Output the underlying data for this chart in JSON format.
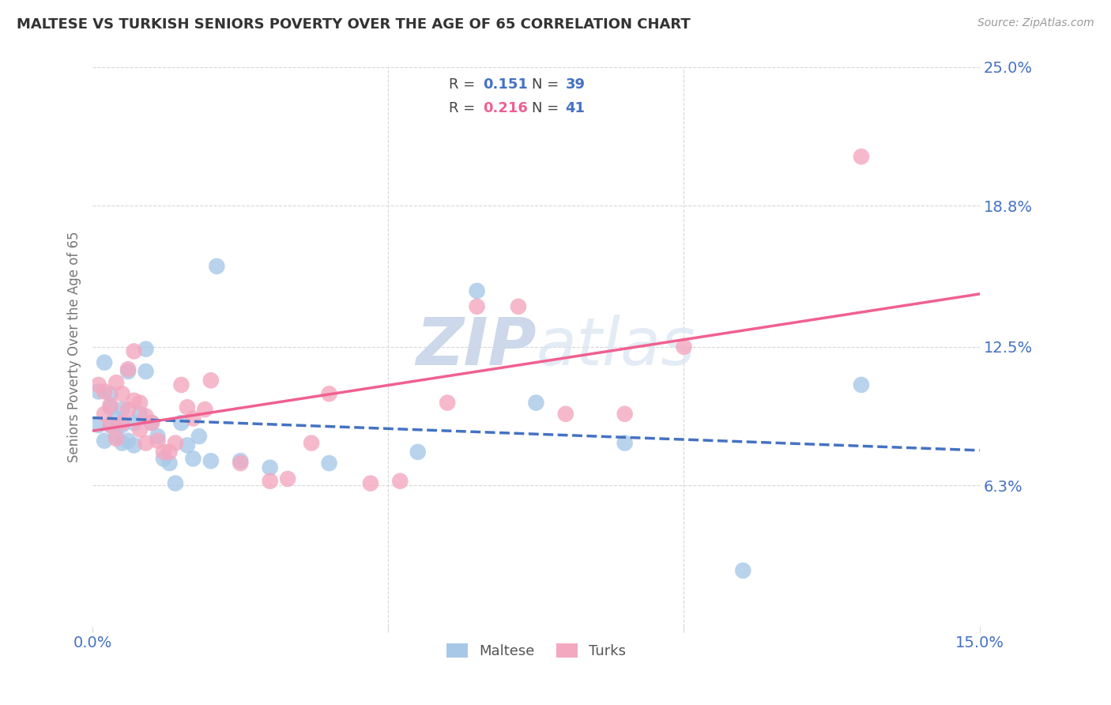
{
  "title": "MALTESE VS TURKISH SENIORS POVERTY OVER THE AGE OF 65 CORRELATION CHART",
  "source": "Source: ZipAtlas.com",
  "ylabel": "Seniors Poverty Over the Age of 65",
  "xlim": [
    0.0,
    0.15
  ],
  "ylim": [
    0.0,
    0.25
  ],
  "xtick_positions": [
    0.0,
    0.05,
    0.1,
    0.15
  ],
  "xtick_labels": [
    "0.0%",
    "",
    "",
    "15.0%"
  ],
  "ytick_positions": [
    0.063,
    0.125,
    0.188,
    0.25
  ],
  "ytick_labels": [
    "6.3%",
    "12.5%",
    "18.8%",
    "25.0%"
  ],
  "legend_r_maltese": "0.151",
  "legend_n_maltese": "39",
  "legend_r_turks": "0.216",
  "legend_n_turks": "41",
  "maltese_color": "#a8c8e8",
  "turks_color": "#f4a8c0",
  "maltese_line_color": "#4472c4",
  "turks_line_color": "#f06090",
  "n_color": "#4472c4",
  "background_color": "#ffffff",
  "grid_color": "#d8d8d8",
  "maltese_x": [
    0.001,
    0.001,
    0.002,
    0.002,
    0.003,
    0.003,
    0.003,
    0.004,
    0.004,
    0.005,
    0.005,
    0.005,
    0.006,
    0.006,
    0.007,
    0.007,
    0.008,
    0.009,
    0.009,
    0.01,
    0.011,
    0.012,
    0.013,
    0.014,
    0.015,
    0.016,
    0.017,
    0.018,
    0.02,
    0.021,
    0.025,
    0.03,
    0.04,
    0.055,
    0.065,
    0.075,
    0.09,
    0.11,
    0.13
  ],
  "maltese_y": [
    0.105,
    0.09,
    0.118,
    0.083,
    0.104,
    0.098,
    0.09,
    0.093,
    0.085,
    0.097,
    0.09,
    0.082,
    0.114,
    0.083,
    0.091,
    0.081,
    0.095,
    0.124,
    0.114,
    0.091,
    0.085,
    0.075,
    0.073,
    0.064,
    0.091,
    0.081,
    0.075,
    0.085,
    0.074,
    0.161,
    0.074,
    0.071,
    0.073,
    0.078,
    0.15,
    0.1,
    0.082,
    0.025,
    0.108
  ],
  "turks_x": [
    0.001,
    0.002,
    0.002,
    0.003,
    0.003,
    0.004,
    0.004,
    0.005,
    0.005,
    0.006,
    0.006,
    0.007,
    0.007,
    0.008,
    0.008,
    0.009,
    0.009,
    0.01,
    0.011,
    0.012,
    0.013,
    0.014,
    0.015,
    0.016,
    0.017,
    0.019,
    0.02,
    0.025,
    0.03,
    0.033,
    0.037,
    0.04,
    0.047,
    0.052,
    0.06,
    0.065,
    0.072,
    0.08,
    0.09,
    0.1,
    0.13
  ],
  "turks_y": [
    0.108,
    0.095,
    0.105,
    0.099,
    0.09,
    0.109,
    0.084,
    0.104,
    0.091,
    0.115,
    0.097,
    0.123,
    0.101,
    0.1,
    0.088,
    0.094,
    0.082,
    0.091,
    0.083,
    0.078,
    0.078,
    0.082,
    0.108,
    0.098,
    0.093,
    0.097,
    0.11,
    0.073,
    0.065,
    0.066,
    0.082,
    0.104,
    0.064,
    0.065,
    0.1,
    0.143,
    0.143,
    0.095,
    0.095,
    0.125,
    0.21
  ]
}
